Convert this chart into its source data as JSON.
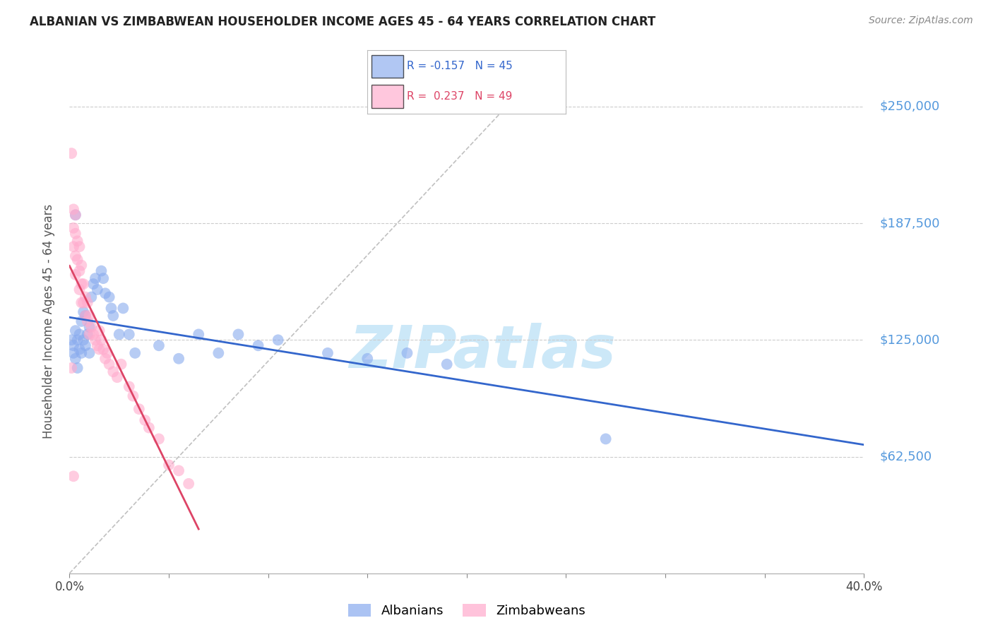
{
  "title": "ALBANIAN VS ZIMBABWEAN HOUSEHOLDER INCOME AGES 45 - 64 YEARS CORRELATION CHART",
  "source": "Source: ZipAtlas.com",
  "ylabel": "Householder Income Ages 45 - 64 years",
  "xlim": [
    0.0,
    0.4
  ],
  "ylim": [
    0,
    270000
  ],
  "yticks": [
    62500,
    125000,
    187500,
    250000
  ],
  "ytick_labels": [
    "$62,500",
    "$125,000",
    "$187,500",
    "$250,000"
  ],
  "bg_color": "#ffffff",
  "grid_color": "#cccccc",
  "alb_color": "#88aaee",
  "zim_color": "#ffaacc",
  "alb_line_color": "#3366cc",
  "zim_line_color": "#dd4466",
  "alb_R": -0.157,
  "alb_N": 45,
  "zim_R": 0.237,
  "zim_N": 49,
  "legend_alb": "Albanians",
  "legend_zim": "Zimbabweans",
  "ytick_color": "#5599dd",
  "title_color": "#222222",
  "source_color": "#888888",
  "watermark_color": "#cce8f8",
  "alb_x": [
    0.001,
    0.002,
    0.002,
    0.003,
    0.003,
    0.004,
    0.004,
    0.005,
    0.005,
    0.006,
    0.006,
    0.007,
    0.007,
    0.008,
    0.008,
    0.009,
    0.01,
    0.01,
    0.011,
    0.012,
    0.013,
    0.014,
    0.016,
    0.017,
    0.018,
    0.02,
    0.021,
    0.022,
    0.025,
    0.027,
    0.03,
    0.033,
    0.045,
    0.055,
    0.065,
    0.075,
    0.085,
    0.095,
    0.105,
    0.13,
    0.15,
    0.17,
    0.19,
    0.27,
    0.003
  ],
  "alb_y": [
    125000,
    122000,
    118000,
    130000,
    115000,
    125000,
    110000,
    128000,
    120000,
    135000,
    118000,
    140000,
    125000,
    138000,
    122000,
    128000,
    132000,
    118000,
    148000,
    155000,
    158000,
    152000,
    162000,
    158000,
    150000,
    148000,
    142000,
    138000,
    128000,
    142000,
    128000,
    118000,
    122000,
    115000,
    128000,
    118000,
    128000,
    122000,
    125000,
    118000,
    115000,
    118000,
    112000,
    72000,
    192000
  ],
  "zim_x": [
    0.001,
    0.001,
    0.002,
    0.002,
    0.002,
    0.003,
    0.003,
    0.003,
    0.003,
    0.004,
    0.004,
    0.005,
    0.005,
    0.005,
    0.006,
    0.006,
    0.006,
    0.007,
    0.007,
    0.008,
    0.008,
    0.009,
    0.009,
    0.01,
    0.01,
    0.011,
    0.012,
    0.013,
    0.014,
    0.015,
    0.015,
    0.016,
    0.017,
    0.018,
    0.019,
    0.02,
    0.022,
    0.024,
    0.026,
    0.03,
    0.032,
    0.035,
    0.038,
    0.04,
    0.045,
    0.05,
    0.055,
    0.06,
    0.002
  ],
  "zim_y": [
    225000,
    110000,
    195000,
    185000,
    175000,
    192000,
    182000,
    170000,
    160000,
    178000,
    168000,
    175000,
    162000,
    152000,
    165000,
    155000,
    145000,
    155000,
    145000,
    148000,
    138000,
    145000,
    135000,
    138000,
    128000,
    132000,
    128000,
    125000,
    122000,
    130000,
    120000,
    125000,
    120000,
    115000,
    118000,
    112000,
    108000,
    105000,
    112000,
    100000,
    95000,
    88000,
    82000,
    78000,
    72000,
    58000,
    55000,
    48000,
    52000
  ]
}
